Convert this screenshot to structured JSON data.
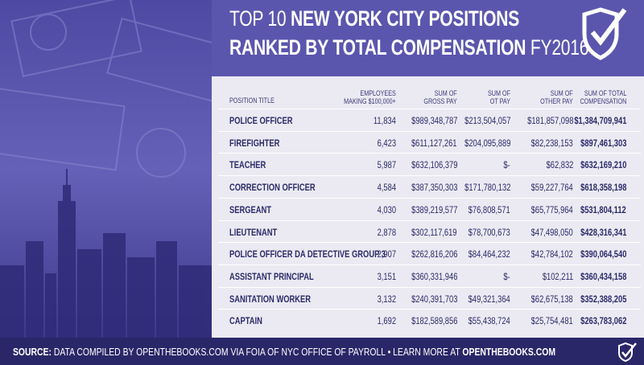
{
  "header": {
    "title_line1": [
      "TOP 10",
      "NEW YORK CITY POSITIONS"
    ],
    "title_line2": [
      "RANKED BY TOTAL COMPENSATION",
      "FY2016"
    ]
  },
  "table": {
    "columns": [
      [
        "POSITION TITLE"
      ],
      [
        "EMPLOYEES",
        "MAKING $100,000+"
      ],
      [
        "SUM OF",
        "GROSS PAY"
      ],
      [
        "SUM OF",
        "OT PAY"
      ],
      [
        "SUM OF",
        "OTHER PAY"
      ],
      [
        "SUM OF TOTAL",
        "COMPENSATION"
      ]
    ],
    "rows": [
      [
        "POLICE OFFICER",
        "11,834",
        "$989,348,787",
        "$213,504,057",
        "$181,857,098",
        "$1,384,709,941"
      ],
      [
        "FIREFIGHTER",
        "6,423",
        "$611,127,261",
        "$204,095,889",
        "$82,238,153",
        "$897,461,303"
      ],
      [
        "TEACHER",
        "5,987",
        "$632,106,379",
        "$-",
        "$62,832",
        "$632,169,210"
      ],
      [
        "CORRECTION OFFICER",
        "4,584",
        "$387,350,303",
        "$171,780,132",
        "$59,227,764",
        "$618,358,198"
      ],
      [
        "SERGEANT",
        "4,030",
        "$389,219,577",
        "$76,808,571",
        "$65,775,964",
        "$531,804,112"
      ],
      [
        "LIEUTENANT",
        "2,878",
        "$302,117,619",
        "$78,700,673",
        "$47,498,050",
        "$428,316,341"
      ],
      [
        "POLICE OFFICER DA DETECTIVE GROUP 3",
        "2,907",
        "$262,816,206",
        "$84,464,232",
        "$42,784,102",
        "$390,064,540"
      ],
      [
        "ASSISTANT PRINCIPAL",
        "3,151",
        "$360,331,946",
        "$-",
        "$102,211",
        "$360,434,158"
      ],
      [
        "SANITATION WORKER",
        "3,132",
        "$240,391,703",
        "$49,321,364",
        "$62,675,138",
        "$352,388,205"
      ],
      [
        "CAPTAIN",
        "1,692",
        "$182,589,856",
        "$55,438,724",
        "$25,754,481",
        "$263,783,062"
      ]
    ]
  },
  "footer": [
    "SOURCE:",
    " DATA COMPILED BY OPENTHEBOOKS.COM VIA FOIA OF NYC OFFICE OF PAYROLL • LEARN MORE AT ",
    "OPENTHEBOOKS.COM"
  ]
}
